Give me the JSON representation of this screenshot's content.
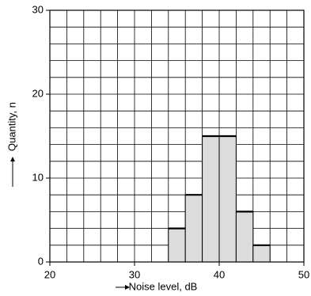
{
  "chart_data": {
    "type": "histogram",
    "xlabel": "Noise level, dB",
    "ylabel": "Quantity, n",
    "bins": [
      34,
      36,
      38,
      40,
      42,
      44,
      46
    ],
    "values": [
      4,
      8,
      15,
      15,
      6,
      2
    ],
    "color": "#dcdcdc",
    "xlim": [
      20,
      50
    ],
    "ylim": [
      0,
      30
    ],
    "xticks": [
      20,
      30,
      40,
      50
    ],
    "yticks": [
      0,
      10,
      20,
      30
    ],
    "xgrid": [
      20,
      22,
      24,
      26,
      28,
      30,
      32,
      34,
      36,
      38,
      40,
      42,
      44,
      46,
      48,
      50
    ],
    "ygrid": [
      0,
      2,
      4,
      6,
      8,
      10,
      12,
      14,
      16,
      18,
      20,
      22,
      24,
      26,
      28,
      30
    ],
    "grid": true
  }
}
